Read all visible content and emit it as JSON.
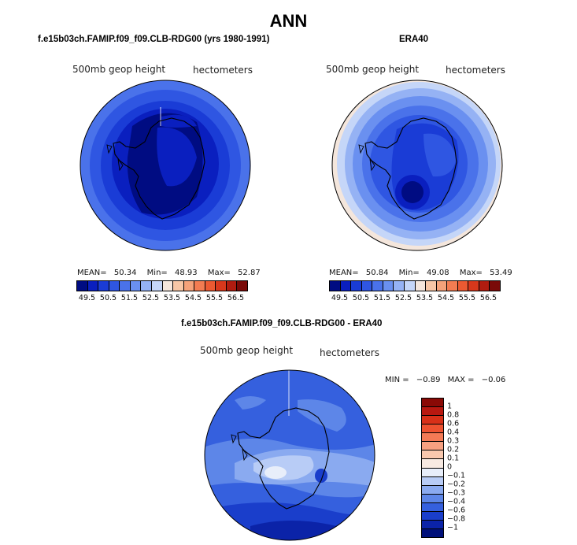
{
  "page": {
    "title": "ANN"
  },
  "panels": {
    "left": {
      "title": "f.e15b03ch.FAMIP.f09_f09.CLB-RDG00 (yrs 1980-1991)",
      "field_label": "500mb geop height",
      "units_label": "hectometers",
      "stats": {
        "mean_label": "MEAN=",
        "mean": "50.34",
        "min_label": "Min=",
        "min": "48.93",
        "max_label": "Max=",
        "max": "52.87"
      }
    },
    "right": {
      "title": "ERA40",
      "field_label": "500mb geop height",
      "units_label": "hectometers",
      "stats": {
        "mean_label": "MEAN=",
        "mean": "50.84",
        "min_label": "Min=",
        "min": "49.08",
        "max_label": "Max=",
        "max": "53.49"
      }
    },
    "diff": {
      "title": "f.e15b03ch.FAMIP.f09_f09.CLB-RDG00 - ERA40",
      "field_label": "500mb geop height",
      "units_label": "hectometers",
      "minmax": {
        "min_label": "MIN =",
        "min": "−0.89",
        "max_label": "MAX =",
        "max": "−0.06"
      }
    }
  },
  "colorbars": {
    "absolute": {
      "ticks": [
        "49.5",
        "50.5",
        "51.5",
        "52.5",
        "53.5",
        "54.5",
        "55.5",
        "56.5"
      ],
      "colors": [
        "#000c82",
        "#0a1fbf",
        "#1a3cd6",
        "#2f56e2",
        "#4a72ea",
        "#6a90f0",
        "#95b2f4",
        "#c5d6f8",
        "#f4e6dc",
        "#f6c6a6",
        "#f4a27a",
        "#f27c52",
        "#ec5a32",
        "#d8381c",
        "#b01c10",
        "#7a0a08"
      ]
    },
    "difference": {
      "ticks": [
        "1",
        "0.8",
        "0.6",
        "0.4",
        "0.3",
        "0.2",
        "0.1",
        "0",
        "−0.1",
        "−0.2",
        "−0.3",
        "−0.4",
        "−0.6",
        "−0.8",
        "−1"
      ],
      "colors": [
        "#8a0a06",
        "#b81810",
        "#d83018",
        "#ee5230",
        "#f47a55",
        "#f7a080",
        "#f9c8ae",
        "#f8eae2",
        "#e8eefa",
        "#b8ccf6",
        "#8aaaf0",
        "#5d86e8",
        "#3560de",
        "#1a3ecb",
        "#0b23a8",
        "#00107a"
      ]
    }
  }
}
